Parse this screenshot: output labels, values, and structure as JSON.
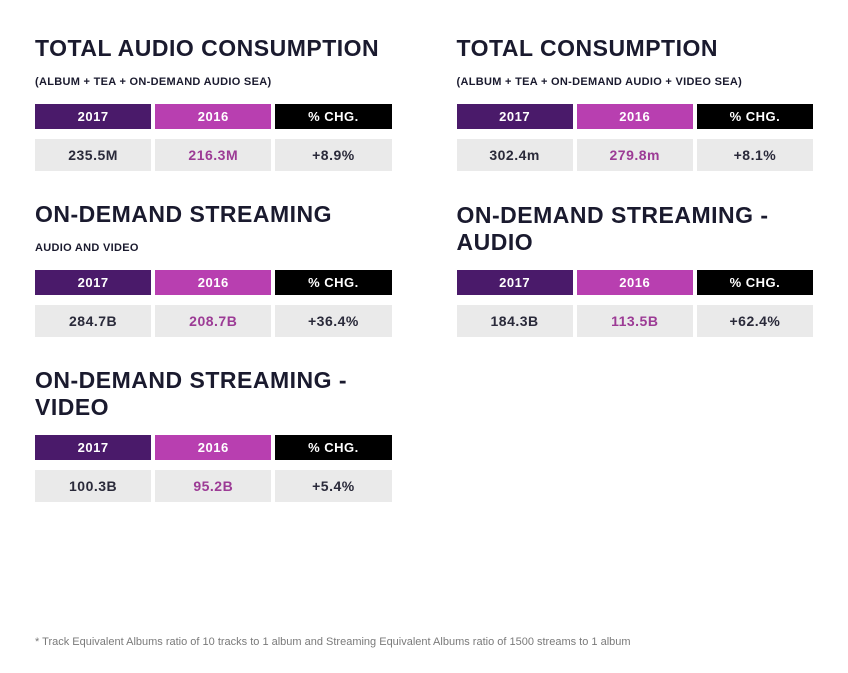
{
  "colors": {
    "header_2017_bg": "#4a1a6a",
    "header_2016_bg": "#b83fb0",
    "header_chg_bg": "#000000",
    "header_text": "#ffffff",
    "data_row_bg": "#eaeaea",
    "val_2017_color": "#2a2a3a",
    "val_2016_color": "#9c3b95",
    "val_chg_color": "#2a2a3a",
    "title_color": "#1a1a2e",
    "footnote_color": "#7a7a7a",
    "background": "#ffffff"
  },
  "typography": {
    "title_fontsize": 23,
    "subtitle_fontsize": 11,
    "header_fontsize": 13,
    "data_fontsize": 14,
    "footnote_fontsize": 11,
    "font_family": "Arial Narrow"
  },
  "header_labels": {
    "y2017": "2017",
    "y2016": "2016",
    "chg": "% CHG."
  },
  "panels": [
    {
      "title": "TOTAL AUDIO CONSUMPTION",
      "subtitle": "(ALBUM + TEA + ON-DEMAND AUDIO SEA)",
      "v2017": "235.5M",
      "v2016": "216.3M",
      "chg": "+8.9%"
    },
    {
      "title": "TOTAL CONSUMPTION",
      "subtitle": "(ALBUM + TEA + ON-DEMAND AUDIO + VIDEO SEA)",
      "v2017": "302.4m",
      "v2016": "279.8m",
      "chg": "+8.1%"
    },
    {
      "title": "ON-DEMAND STREAMING",
      "subtitle": "AUDIO AND VIDEO",
      "v2017": "284.7B",
      "v2016": "208.7B",
      "chg": "+36.4%"
    },
    {
      "title": "ON-DEMAND STREAMING - AUDIO",
      "subtitle": "",
      "v2017": "184.3B",
      "v2016": "113.5B",
      "chg": "+62.4%"
    },
    {
      "title": "ON-DEMAND STREAMING - VIDEO",
      "subtitle": "",
      "v2017": "100.3B",
      "v2016": "95.2B",
      "chg": "+5.4%"
    }
  ],
  "footnote": "* Track Equivalent Albums ratio of 10 tracks to 1 album and Streaming Equivalent Albums ratio of 1500 streams to 1 album"
}
